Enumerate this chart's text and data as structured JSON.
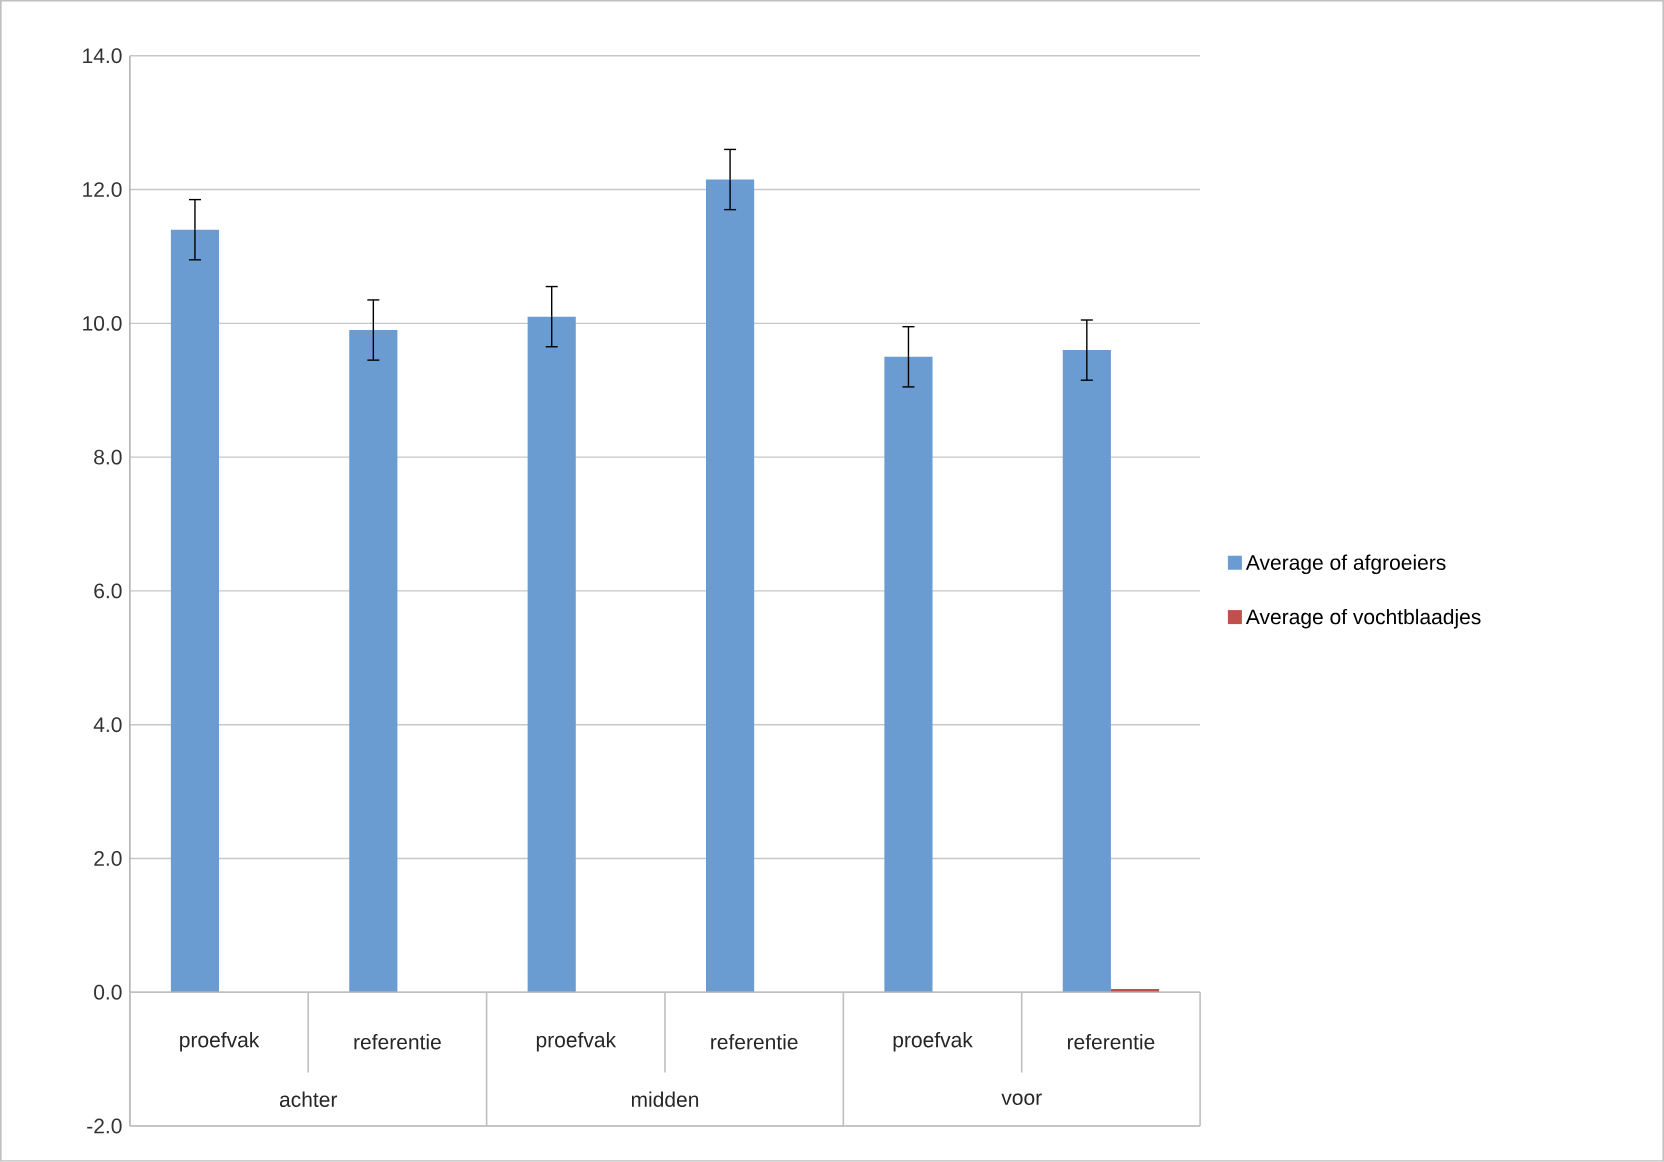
{
  "chart_data": {
    "type": "bar",
    "categories": [
      "proefvak",
      "referentie",
      "proefvak",
      "referentie",
      "proefvak",
      "referentie"
    ],
    "series": [
      {
        "name": "Average of afgroeiers",
        "color": "#6a9bd1",
        "values": [
          11.4,
          9.9,
          10.1,
          12.15,
          9.5,
          9.6
        ],
        "errors": [
          0.45,
          0.45,
          0.45,
          0.45,
          0.45,
          0.45
        ]
      },
      {
        "name": "Average of vochtblaadjes",
        "color": "#c0504d",
        "values": [
          0,
          0,
          0,
          0,
          0,
          0.05
        ]
      }
    ],
    "annotations": [
      "achter",
      "midden",
      "voor"
    ],
    "ylim": [
      -2,
      14
    ],
    "yticks": [
      {
        "value": -2,
        "label": "-2.0"
      },
      {
        "value": 0,
        "label": "0.0"
      },
      {
        "value": 2,
        "label": "2.0"
      },
      {
        "value": 4,
        "label": "4.0"
      },
      {
        "value": 6,
        "label": "6.0"
      },
      {
        "value": 8,
        "label": "8.0"
      },
      {
        "value": 10,
        "label": "10.0"
      },
      {
        "value": 12,
        "label": "12.0"
      },
      {
        "value": 14,
        "label": "14.0"
      }
    ],
    "grid": "y",
    "legend": "right"
  }
}
